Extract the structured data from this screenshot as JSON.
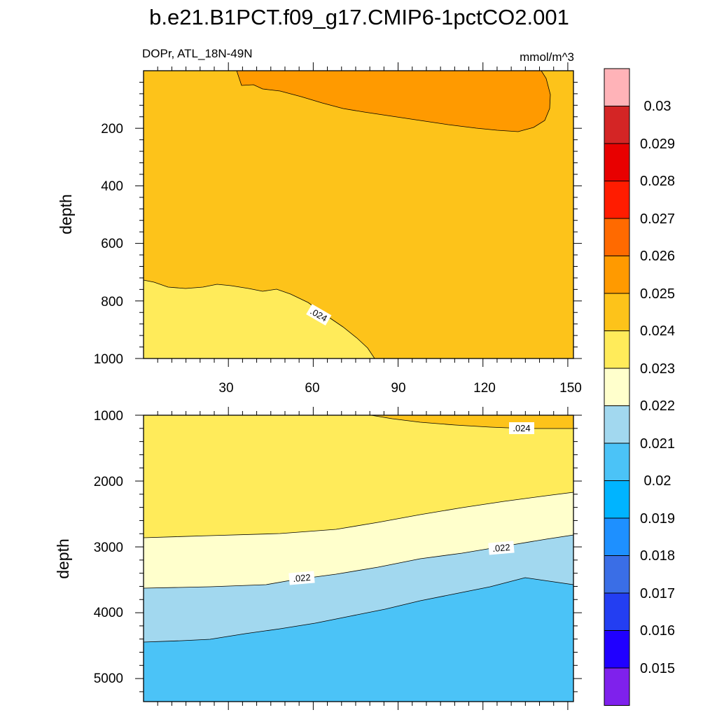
{
  "chart_data": {
    "type": "contour",
    "title": "b.e21.B1PCT.f09_g17.CMIP6-1pctCO2.001",
    "variable_label": "DOPr, ATL_18N-49N",
    "units": "mmol/m^3",
    "colors": {
      "c0": "#7f21ec",
      "c1": "#2000ff",
      "c2": "#233ef2",
      "c3": "#1f40ff",
      "c4": "#3a6ee6",
      "c5": "#1e90ff",
      "c6": "#00b4ff",
      "c7": "#4bc3f7",
      "c8": "#a2d8ef",
      "c9": "#ffffcc",
      "c10": "#ffeb5a",
      "c11": "#fdc31a",
      "c12": "#ff9a00",
      "c13": "#ff6a00",
      "c14": "#ff1c00",
      "c15": "#e80000",
      "c16": "#d42525",
      "c17": "#ffb3b8"
    },
    "colorbar": {
      "levels": [
        "0.015",
        "0.016",
        "0.017",
        "0.018",
        "0.019",
        "0.02",
        "0.021",
        "0.022",
        "0.023",
        "0.024",
        "0.025",
        "0.026",
        "0.027",
        "0.028",
        "0.029",
        "0.03"
      ]
    },
    "panels": [
      {
        "name": "upper",
        "ylabel": "depth",
        "ylim": [
          0,
          1000
        ],
        "xlim": [
          0,
          152
        ],
        "yticks": [
          "200",
          "400",
          "600",
          "800",
          "1000"
        ],
        "xticks": [
          "30",
          "60",
          "90",
          "120",
          "150"
        ],
        "contour_labels": [
          ".024"
        ],
        "regions": [
          {
            "range": "0.023-0.024",
            "description": "deep southern section below ~730-800 m"
          },
          {
            "range": "0.024-0.025",
            "description": "bulk of section"
          },
          {
            "range": "0.025-0.026",
            "description": "near-surface maximum between x~35 and x~145, depth <220 m"
          }
        ]
      },
      {
        "name": "lower",
        "ylabel": "depth",
        "ylim": [
          1000,
          5350
        ],
        "xlim": [
          0,
          152
        ],
        "yticks": [
          "1000",
          "2000",
          "3000",
          "4000",
          "5000"
        ],
        "contour_labels": [
          ".024",
          ".022",
          ".022"
        ],
        "regions": [
          {
            "range": "0.024-0.025",
            "description": "thin layer at 1000-1200 m north of x~80"
          },
          {
            "range": "0.023-0.024",
            "description": "upper layer to ~2200-2900 m"
          },
          {
            "range": "0.022-0.023",
            "description": "band ~2200-3600 m"
          },
          {
            "range": "0.021-0.022",
            "description": "band ~2800-4450 m"
          },
          {
            "range": "0.020-0.021",
            "description": "bottom water below ~3600-4450 m"
          }
        ]
      }
    ]
  }
}
